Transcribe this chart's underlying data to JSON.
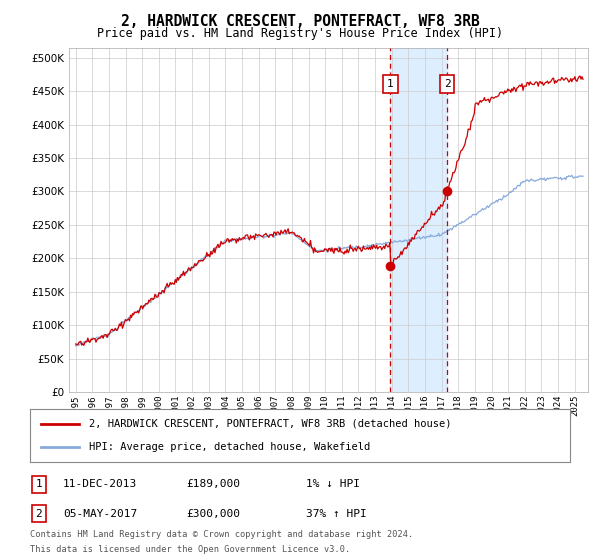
{
  "title": "2, HARDWICK CRESCENT, PONTEFRACT, WF8 3RB",
  "subtitle": "Price paid vs. HM Land Registry's House Price Index (HPI)",
  "legend_line1": "2, HARDWICK CRESCENT, PONTEFRACT, WF8 3RB (detached house)",
  "legend_line2": "HPI: Average price, detached house, Wakefield",
  "sale1_date_label": "11-DEC-2013",
  "sale1_price": 189000,
  "sale1_price_str": "£189,000",
  "sale1_pct": "1% ↓ HPI",
  "sale2_date_label": "05-MAY-2017",
  "sale2_price": 300000,
  "sale2_price_str": "£300,000",
  "sale2_pct": "37% ↑ HPI",
  "sale1_year": 2013.92,
  "sale2_year": 2017.33,
  "footnote1": "Contains HM Land Registry data © Crown copyright and database right 2024.",
  "footnote2": "This data is licensed under the Open Government Licence v3.0.",
  "property_color": "#cc0000",
  "hpi_color": "#88aadd",
  "shade_color": "#ddeeff",
  "marker_box_color": "#cc0000",
  "background_color": "#ffffff",
  "grid_color": "#cccccc"
}
